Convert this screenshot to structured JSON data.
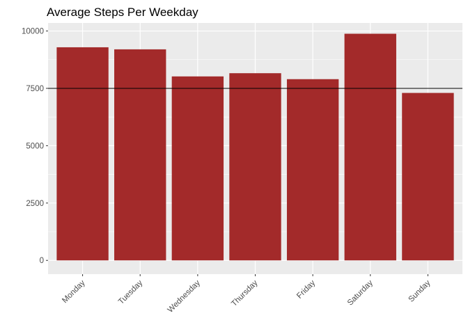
{
  "chart_data": {
    "type": "bar",
    "title": "Average Steps Per Weekday",
    "xlabel": "",
    "ylabel": "",
    "categories": [
      "Monday",
      "Tuesday",
      "Wednesday",
      "Thursday",
      "Friday",
      "Saturday",
      "Sunday"
    ],
    "values": [
      9290,
      9200,
      8020,
      8160,
      7900,
      9880,
      7300
    ],
    "ylim": [
      -600,
      10350
    ],
    "yticks": [
      0,
      2500,
      5000,
      7500,
      10000
    ],
    "reference_line": {
      "y": 7500,
      "color": "#000000"
    },
    "bar_color": "#a32a2a",
    "panel_background": "#ebebeb",
    "grid": true,
    "legend": "none"
  }
}
